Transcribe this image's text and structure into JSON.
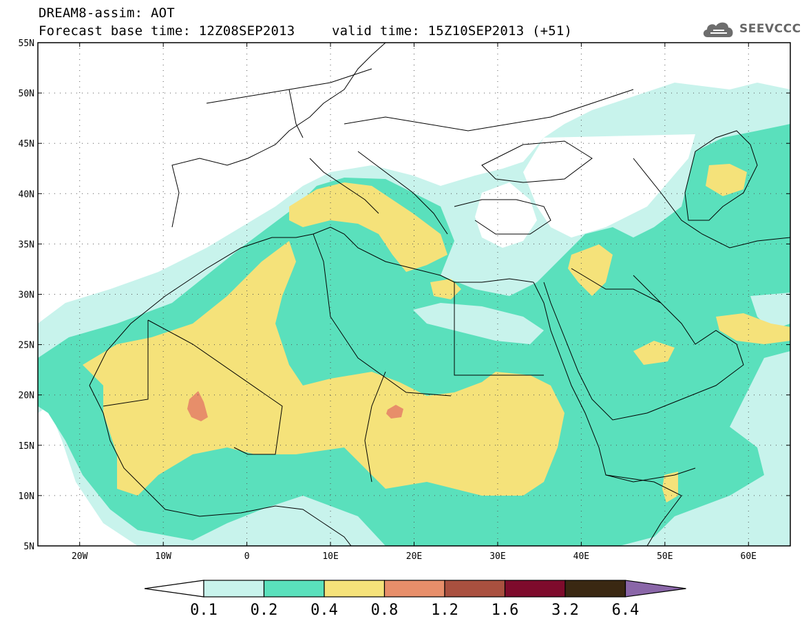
{
  "header": {
    "line1": "DREAM8-assim: AOT",
    "base_time": "Forecast base time: 12Z08SEP2013",
    "valid_time": "valid time: 15Z10SEP2013 (+51)",
    "logo": "SEEVCCC"
  },
  "map": {
    "lon_range": [
      -25,
      65
    ],
    "lat_range": [
      5,
      55
    ],
    "lat_labels": [
      "55N",
      "50N",
      "45N",
      "40N",
      "35N",
      "30N",
      "25N",
      "20N",
      "15N",
      "10N",
      "5N"
    ],
    "lon_labels": [
      "20W",
      "10W",
      "0",
      "10E",
      "20E",
      "30E",
      "40E",
      "50E",
      "60E"
    ],
    "gridlines": "dotted"
  },
  "legend": {
    "levels": [
      "0.1",
      "0.2",
      "0.4",
      "0.8",
      "1.2",
      "1.6",
      "3.2",
      "6.4"
    ],
    "colors": [
      "#c8f3ec",
      "#5ae0bc",
      "#f5e27a",
      "#e78e6a",
      "#a9503f",
      "#7e0b2c",
      "#3a2812",
      "#8a66a8"
    ]
  }
}
